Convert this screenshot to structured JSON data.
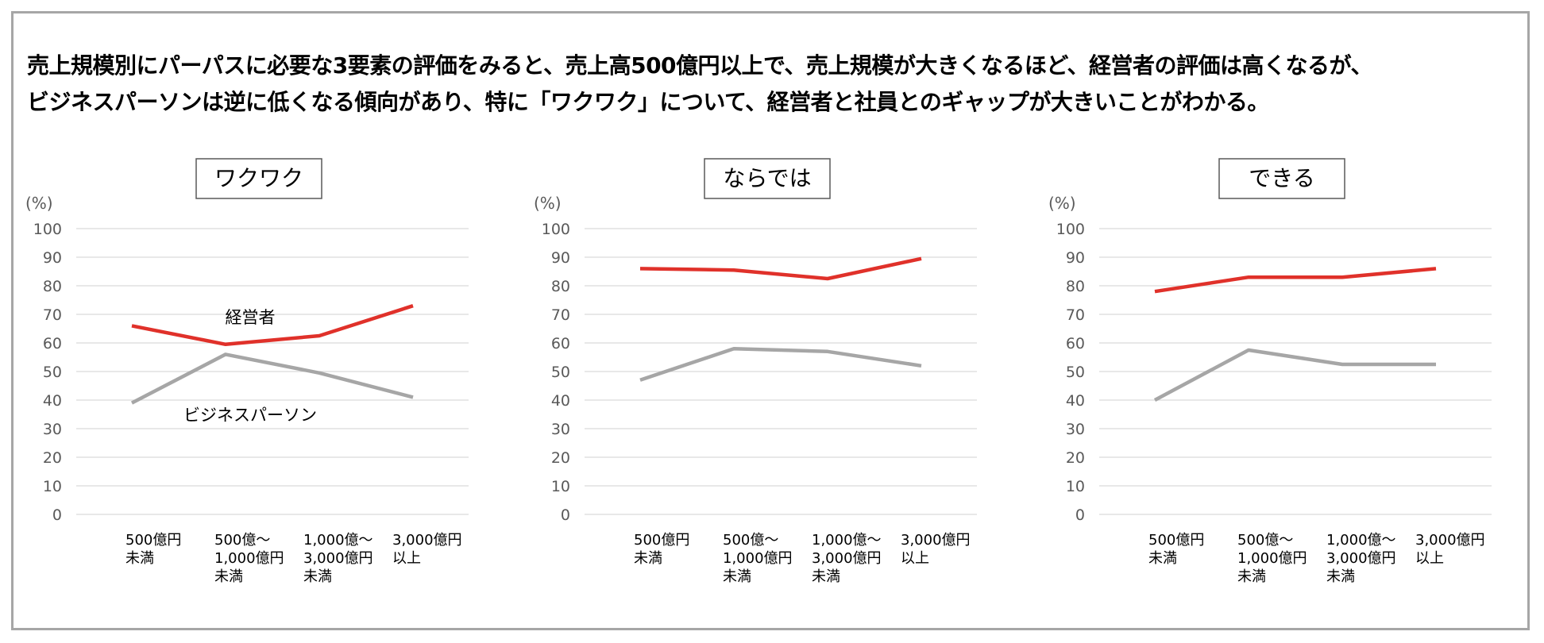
{
  "headline": {
    "line1": "売上規模別にパーパスに必要な3要素の評価をみると、売上高500億円以上で、売上規模が大きくなるほど、経営者の評価は高くなるが、",
    "line2": "ビジネスパーソンは逆に低くなる傾向があり、特に「ワクワク」について、経営者と社員とのギャップが大きいことがわかる。"
  },
  "colors": {
    "executive": "#e0312a",
    "business_person": "#a6a6a6",
    "grid": "#d9d9d9",
    "axis_text": "#595959"
  },
  "chart_data": [
    {
      "type": "line",
      "title": "ワクワク",
      "ylabel": "(%)",
      "ylim": [
        0,
        100
      ],
      "yticks": [
        0,
        10,
        20,
        30,
        40,
        50,
        60,
        70,
        80,
        90,
        100
      ],
      "categories": [
        [
          "500億円",
          "未満"
        ],
        [
          "500億～",
          "1,000億円",
          "未満"
        ],
        [
          "1,000億～",
          "3,000億円",
          "未満"
        ],
        [
          "3,000億円",
          "以上"
        ]
      ],
      "series": [
        {
          "name": "経営者",
          "color": "#e0312a",
          "values": [
            66,
            59.5,
            62.5,
            73
          ]
        },
        {
          "name": "ビジネスパーソン",
          "color": "#a6a6a6",
          "values": [
            39,
            56,
            49.5,
            41
          ]
        }
      ],
      "grid": true,
      "series_labels_shown": true
    },
    {
      "type": "line",
      "title": "ならでは",
      "ylabel": "(%)",
      "ylim": [
        0,
        100
      ],
      "yticks": [
        0,
        10,
        20,
        30,
        40,
        50,
        60,
        70,
        80,
        90,
        100
      ],
      "categories": [
        [
          "500億円",
          "未満"
        ],
        [
          "500億～",
          "1,000億円",
          "未満"
        ],
        [
          "1,000億～",
          "3,000億円",
          "未満"
        ],
        [
          "3,000億円",
          "以上"
        ]
      ],
      "series": [
        {
          "color": "#e0312a",
          "values": [
            86,
            85.5,
            82.5,
            89.5
          ]
        },
        {
          "color": "#a6a6a6",
          "values": [
            47,
            58,
            57,
            52
          ]
        }
      ],
      "grid": true,
      "series_labels_shown": false
    },
    {
      "type": "line",
      "title": "できる",
      "ylabel": "(%)",
      "ylim": [
        0,
        100
      ],
      "yticks": [
        0,
        10,
        20,
        30,
        40,
        50,
        60,
        70,
        80,
        90,
        100
      ],
      "categories": [
        [
          "500億円",
          "未満"
        ],
        [
          "500億～",
          "1,000億円",
          "未満"
        ],
        [
          "1,000億～",
          "3,000億円",
          "未満"
        ],
        [
          "3,000億円",
          "以上"
        ]
      ],
      "series": [
        {
          "color": "#e0312a",
          "values": [
            78,
            83,
            83,
            86
          ]
        },
        {
          "color": "#a6a6a6",
          "values": [
            40,
            57.5,
            52.5,
            52.5
          ]
        }
      ],
      "grid": true,
      "series_labels_shown": false
    }
  ]
}
